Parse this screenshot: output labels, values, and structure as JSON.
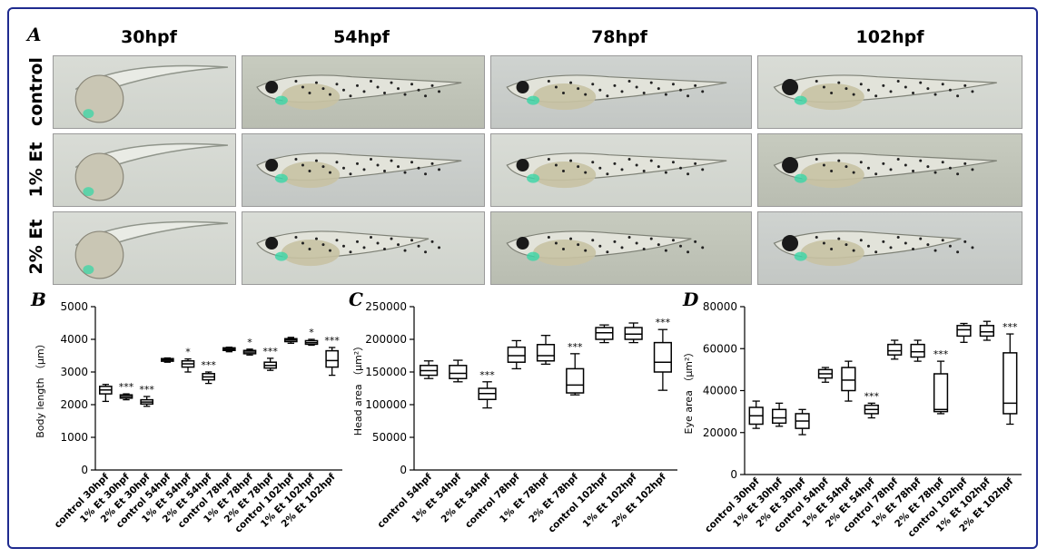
{
  "panel_labels": {
    "a": "A",
    "b": "B",
    "c": "C",
    "d": "D"
  },
  "columns": [
    "30hpf",
    "54hpf",
    "78hpf",
    "102hpf"
  ],
  "rows": [
    "control",
    "1% Et",
    "2% Et"
  ],
  "chart_data": [
    {
      "type": "box",
      "panel": "B",
      "ylabel": "Body length （μm）",
      "ylim": [
        0,
        5000
      ],
      "yticks": [
        0,
        1000,
        2000,
        3000,
        4000,
        5000
      ],
      "categories": [
        "control 30hpf",
        "1% Et 30hpf",
        "2% Et 30hpf",
        "control 54hpf",
        "1% Et 54hpf",
        "2% Et 54hpf",
        "control 78hpf",
        "1% Et 78hpf",
        "2% Et 78hpf",
        "control 102hpf",
        "1% Et 102hpf",
        "2% Et 102hpf"
      ],
      "boxes": [
        {
          "min": 2100,
          "q1": 2330,
          "median": 2450,
          "q3": 2560,
          "max": 2620,
          "sig": ""
        },
        {
          "min": 2150,
          "q1": 2200,
          "median": 2250,
          "q3": 2300,
          "max": 2330,
          "sig": "***"
        },
        {
          "min": 1950,
          "q1": 2020,
          "median": 2080,
          "q3": 2150,
          "max": 2250,
          "sig": "***"
        },
        {
          "min": 3300,
          "q1": 3330,
          "median": 3370,
          "q3": 3410,
          "max": 3430,
          "sig": ""
        },
        {
          "min": 3000,
          "q1": 3150,
          "median": 3250,
          "q3": 3340,
          "max": 3400,
          "sig": "*"
        },
        {
          "min": 2650,
          "q1": 2760,
          "median": 2850,
          "q3": 2950,
          "max": 3000,
          "sig": "***"
        },
        {
          "min": 3620,
          "q1": 3660,
          "median": 3700,
          "q3": 3740,
          "max": 3760,
          "sig": ""
        },
        {
          "min": 3520,
          "q1": 3560,
          "median": 3610,
          "q3": 3660,
          "max": 3700,
          "sig": "*"
        },
        {
          "min": 3050,
          "q1": 3120,
          "median": 3200,
          "q3": 3300,
          "max": 3420,
          "sig": "***"
        },
        {
          "min": 3880,
          "q1": 3930,
          "median": 3980,
          "q3": 4020,
          "max": 4060,
          "sig": ""
        },
        {
          "min": 3820,
          "q1": 3850,
          "median": 3900,
          "q3": 3960,
          "max": 4000,
          "sig": "*"
        },
        {
          "min": 2900,
          "q1": 3150,
          "median": 3350,
          "q3": 3650,
          "max": 3750,
          "sig": "***"
        }
      ]
    },
    {
      "type": "box",
      "panel": "C",
      "ylabel": "Head area （μm²）",
      "ylim": [
        0,
        250000
      ],
      "yticks": [
        0,
        50000,
        100000,
        150000,
        200000,
        250000
      ],
      "categories": [
        "control 54hpf",
        "1% Et 54hpf",
        "2% Et 54hpf",
        "control 78hpf",
        "1% Et 78hpf",
        "2% Et 78hpf",
        "control 102hpf",
        "1% Et 102hpf",
        "2% Et 102hpf"
      ],
      "boxes": [
        {
          "min": 140000,
          "q1": 145000,
          "median": 152000,
          "q3": 160000,
          "max": 167000,
          "sig": ""
        },
        {
          "min": 135000,
          "q1": 140000,
          "median": 148000,
          "q3": 160000,
          "max": 168000,
          "sig": ""
        },
        {
          "min": 95000,
          "q1": 108000,
          "median": 117000,
          "q3": 125000,
          "max": 135000,
          "sig": "***"
        },
        {
          "min": 155000,
          "q1": 165000,
          "median": 175000,
          "q3": 188000,
          "max": 198000,
          "sig": ""
        },
        {
          "min": 162000,
          "q1": 167000,
          "median": 175000,
          "q3": 192000,
          "max": 206000,
          "sig": ""
        },
        {
          "min": 115000,
          "q1": 118000,
          "median": 130000,
          "q3": 155000,
          "max": 178000,
          "sig": "***"
        },
        {
          "min": 195000,
          "q1": 200000,
          "median": 210000,
          "q3": 218000,
          "max": 222000,
          "sig": ""
        },
        {
          "min": 195000,
          "q1": 200000,
          "median": 208000,
          "q3": 218000,
          "max": 225000,
          "sig": ""
        },
        {
          "min": 122000,
          "q1": 150000,
          "median": 165000,
          "q3": 195000,
          "max": 215000,
          "sig": "***"
        }
      ]
    },
    {
      "type": "box",
      "panel": "D",
      "ylabel": "Eye area （μm²）",
      "ylim": [
        0,
        80000
      ],
      "yticks": [
        0,
        20000,
        40000,
        60000,
        80000
      ],
      "categories": [
        "control 30hpf",
        "1% Et 30hpf",
        "2% Et 30hpf",
        "control 54hpf",
        "1% Et 54hpf",
        "2% Et 54hpf",
        "control 78hpf",
        "1% Et 78hpf",
        "2% Et 78hpf",
        "control 102hpf",
        "1% Et 102hpf",
        "2% Et 102hpf"
      ],
      "boxes": [
        {
          "min": 22000,
          "q1": 24000,
          "median": 28000,
          "q3": 32000,
          "max": 35000,
          "sig": ""
        },
        {
          "min": 23000,
          "q1": 24500,
          "median": 27000,
          "q3": 31000,
          "max": 34000,
          "sig": ""
        },
        {
          "min": 19000,
          "q1": 22000,
          "median": 25500,
          "q3": 29000,
          "max": 31000,
          "sig": ""
        },
        {
          "min": 44000,
          "q1": 46000,
          "median": 48000,
          "q3": 50000,
          "max": 51000,
          "sig": ""
        },
        {
          "min": 35000,
          "q1": 40000,
          "median": 45000,
          "q3": 51000,
          "max": 54000,
          "sig": ""
        },
        {
          "min": 27000,
          "q1": 29000,
          "median": 31000,
          "q3": 33000,
          "max": 34000,
          "sig": "***"
        },
        {
          "min": 55000,
          "q1": 57000,
          "median": 59000,
          "q3": 62000,
          "max": 64000,
          "sig": ""
        },
        {
          "min": 54000,
          "q1": 56000,
          "median": 58500,
          "q3": 62000,
          "max": 64000,
          "sig": ""
        },
        {
          "min": 29000,
          "q1": 30000,
          "median": 31000,
          "q3": 48000,
          "max": 54000,
          "sig": "***"
        },
        {
          "min": 63000,
          "q1": 66000,
          "median": 69000,
          "q3": 71000,
          "max": 72000,
          "sig": ""
        },
        {
          "min": 64000,
          "q1": 66000,
          "median": 68000,
          "q3": 71000,
          "max": 73000,
          "sig": ""
        },
        {
          "min": 24000,
          "q1": 29000,
          "median": 34000,
          "q3": 58000,
          "max": 67000,
          "sig": "***"
        }
      ]
    }
  ]
}
